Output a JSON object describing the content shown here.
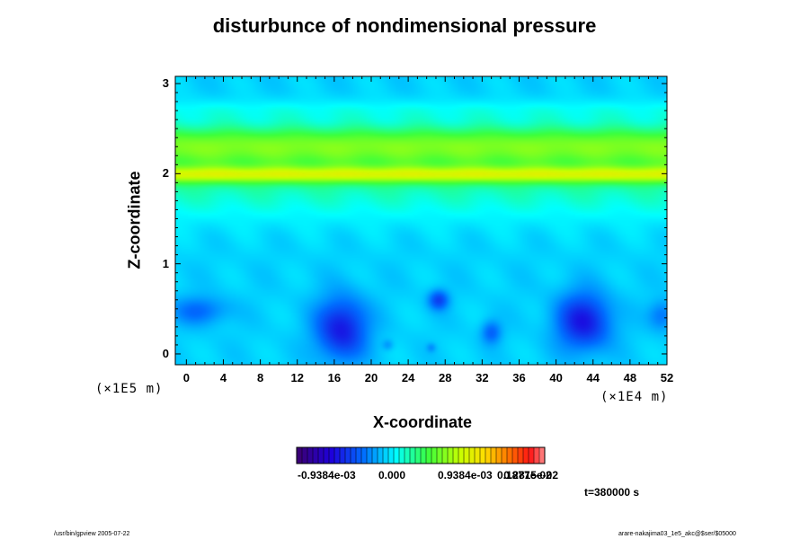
{
  "chart_data": {
    "type": "heatmap",
    "title": "disturbunce of nondimensional pressure",
    "xlabel": "X-coordinate",
    "ylabel": "Z-coordinate",
    "x_unit": "(×1E4 m)",
    "y_unit": "(×1E5 m)",
    "x_ticks": [
      "0",
      "4",
      "8",
      "12",
      "16",
      "20",
      "24",
      "28",
      "32",
      "36",
      "40",
      "44",
      "48",
      "52"
    ],
    "y_ticks": [
      "0",
      "1",
      "2",
      "3"
    ],
    "xlim": [
      -1.2,
      52
    ],
    "ylim": [
      -0.12,
      3.08
    ],
    "colorbar_labels": [
      "-0.9384e-03",
      "0.000",
      "0.9384e-03",
      "0.1877e-02",
      "0.2815e-02"
    ],
    "colorbar_range": [
      -0.0017,
      0.004
    ],
    "background_value": 0.00035,
    "bands": [
      {
        "z": 1.99,
        "width": 0.09,
        "value": 0.0012
      },
      {
        "z": 2.32,
        "width": 0.22,
        "value": 0.00095
      },
      {
        "z": 2.0,
        "width": 0.45,
        "value": 0.0006
      },
      {
        "z": 2.7,
        "width": 0.12,
        "value": 0.0002
      }
    ],
    "lows": [
      {
        "x": 16.8,
        "z": 0.28,
        "sx": 2.8,
        "sz": 0.35,
        "value": -0.0011
      },
      {
        "x": 43,
        "z": 0.36,
        "sx": 3.0,
        "sz": 0.32,
        "value": -0.0011
      },
      {
        "x": 1.5,
        "z": 0.48,
        "sx": 3.0,
        "sz": 0.16,
        "value": -0.00055
      },
      {
        "x": 27.3,
        "z": 0.6,
        "sx": 1.1,
        "sz": 0.11,
        "value": -0.0008
      },
      {
        "x": 33,
        "z": 0.24,
        "sx": 1.1,
        "sz": 0.13,
        "value": -0.0006
      },
      {
        "x": 51.5,
        "z": 0.43,
        "sx": 1.5,
        "sz": 0.17,
        "value": -0.0005
      },
      {
        "x": 21.8,
        "z": 0.1,
        "sx": 0.6,
        "sz": 0.06,
        "value": -0.0003
      },
      {
        "x": 26.5,
        "z": 0.07,
        "sx": 0.5,
        "sz": 0.05,
        "value": -0.0003
      }
    ],
    "time_label": "t=380000 s",
    "grid": false,
    "legend": "colorbar-bottom"
  },
  "footer": {
    "left": "/usr/bin/gpview 2005-07-22",
    "right": "arare-nakajima03_1e5_akc@$ser/$05000"
  }
}
